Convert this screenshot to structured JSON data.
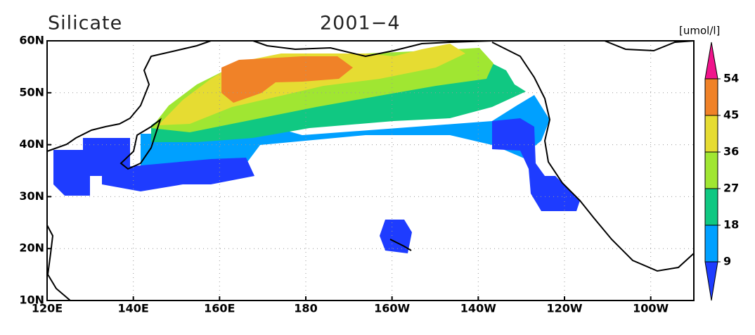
{
  "title": "Silicate",
  "date": "2001−4",
  "units": "[umol/l]",
  "x_axis": {
    "lim": [
      120,
      270
    ],
    "ticks": [
      {
        "value": 120,
        "label": "120E"
      },
      {
        "value": 140,
        "label": "140E"
      },
      {
        "value": 160,
        "label": "160E"
      },
      180,
      {
        "value": 200,
        "label": "160W"
      },
      {
        "value": 220,
        "label": "140W"
      },
      {
        "value": 240,
        "label": "120W"
      },
      {
        "value": 260,
        "label": "100W"
      }
    ]
  },
  "y_axis": {
    "lim": [
      10,
      60
    ],
    "ticks": [
      {
        "value": 10,
        "label": "10N"
      },
      {
        "value": 20,
        "label": "20N"
      },
      {
        "value": 30,
        "label": "30N"
      },
      {
        "value": 40,
        "label": "40N"
      },
      {
        "value": 50,
        "label": "50N"
      },
      {
        "value": 60,
        "label": "60N"
      }
    ]
  },
  "colorbar": {
    "levels": [
      9,
      18,
      27,
      36,
      45,
      54
    ],
    "colors": [
      "#1e3cff",
      "#00a0ff",
      "#10c882",
      "#a0e632",
      "#e6dc32",
      "#f08228",
      "#f0148c"
    ]
  }
}
